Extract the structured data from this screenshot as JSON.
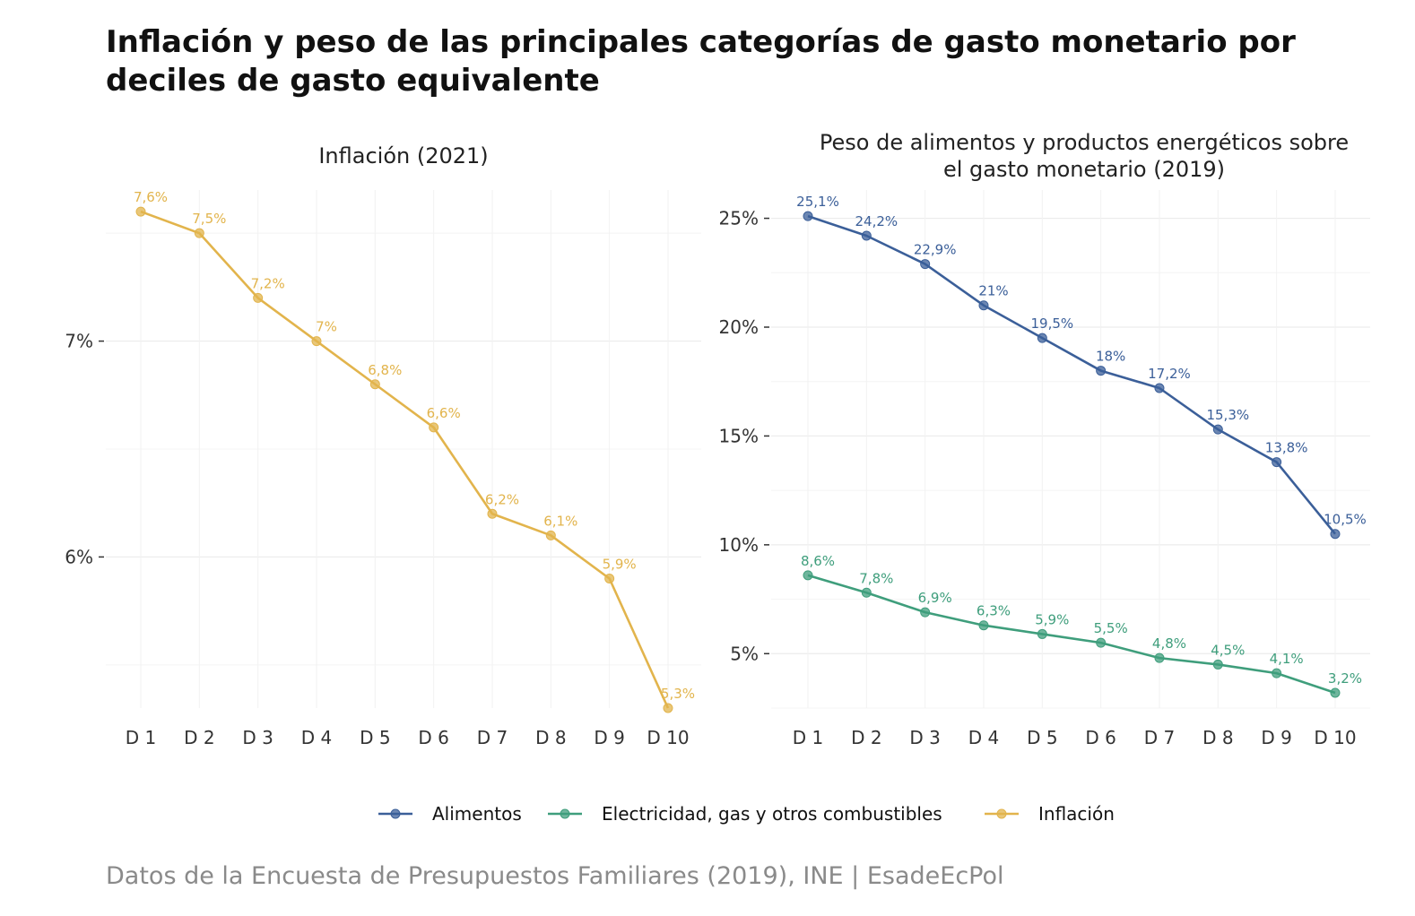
{
  "title": "Inflación y peso de las principales categorías de gasto monetario por deciles de gasto equivalente",
  "caption": "Datos de la Encuesta de Presupuestos Familiares (2019), INE | EsadeEcPol",
  "colors": {
    "Alimentos": "#3b5f99",
    "Electricidad, gas y otros combustibles": "#3f9e7c",
    "Inflación": "#e2b44c"
  },
  "legend": [
    "Alimentos",
    "Electricidad, gas y otros combustibles",
    "Inflación"
  ],
  "chart_data": [
    {
      "type": "line",
      "title": "Inflación (2021)",
      "categories": [
        "D 1",
        "D 2",
        "D 3",
        "D 4",
        "D 5",
        "D 6",
        "D 7",
        "D 8",
        "D 9",
        "D 10"
      ],
      "ylim": [
        5.3,
        7.7
      ],
      "yticks": [
        6,
        7
      ],
      "ytick_labels": [
        "6%",
        "7%"
      ],
      "grid": true,
      "series": [
        {
          "name": "Inflación",
          "values": [
            7.6,
            7.5,
            7.2,
            7.0,
            6.8,
            6.6,
            6.2,
            6.1,
            5.9,
            5.3
          ],
          "labels": [
            "7,6%",
            "7,5%",
            "7,2%",
            "7%",
            "6,8%",
            "6,6%",
            "6,2%",
            "6,1%",
            "5,9%",
            "5,3%"
          ]
        }
      ]
    },
    {
      "type": "line",
      "title": "Peso de alimentos y productos energéticos sobre el gasto monetario (2019)",
      "title_lines": [
        "Peso de alimentos y productos energéticos sobre",
        "el gasto monetario (2019)"
      ],
      "categories": [
        "D 1",
        "D 2",
        "D 3",
        "D 4",
        "D 5",
        "D 6",
        "D 7",
        "D 8",
        "D 9",
        "D 10"
      ],
      "ylim": [
        2.5,
        26.3
      ],
      "yticks": [
        5,
        10,
        15,
        20,
        25
      ],
      "ytick_labels": [
        "5%",
        "10%",
        "15%",
        "20%",
        "25%"
      ],
      "grid": true,
      "series": [
        {
          "name": "Alimentos",
          "values": [
            25.1,
            24.2,
            22.9,
            21.0,
            19.5,
            18.0,
            17.2,
            15.3,
            13.8,
            10.5
          ],
          "labels": [
            "25,1%",
            "24,2%",
            "22,9%",
            "21%",
            "19,5%",
            "18%",
            "17,2%",
            "15,3%",
            "13,8%",
            "10,5%"
          ]
        },
        {
          "name": "Electricidad, gas y otros combustibles",
          "values": [
            8.6,
            7.8,
            6.9,
            6.3,
            5.9,
            5.5,
            4.8,
            4.5,
            4.1,
            3.2
          ],
          "labels": [
            "8,6%",
            "7,8%",
            "6,9%",
            "6,3%",
            "5,9%",
            "5,5%",
            "4,8%",
            "4,5%",
            "4,1%",
            "3,2%"
          ]
        }
      ]
    }
  ]
}
